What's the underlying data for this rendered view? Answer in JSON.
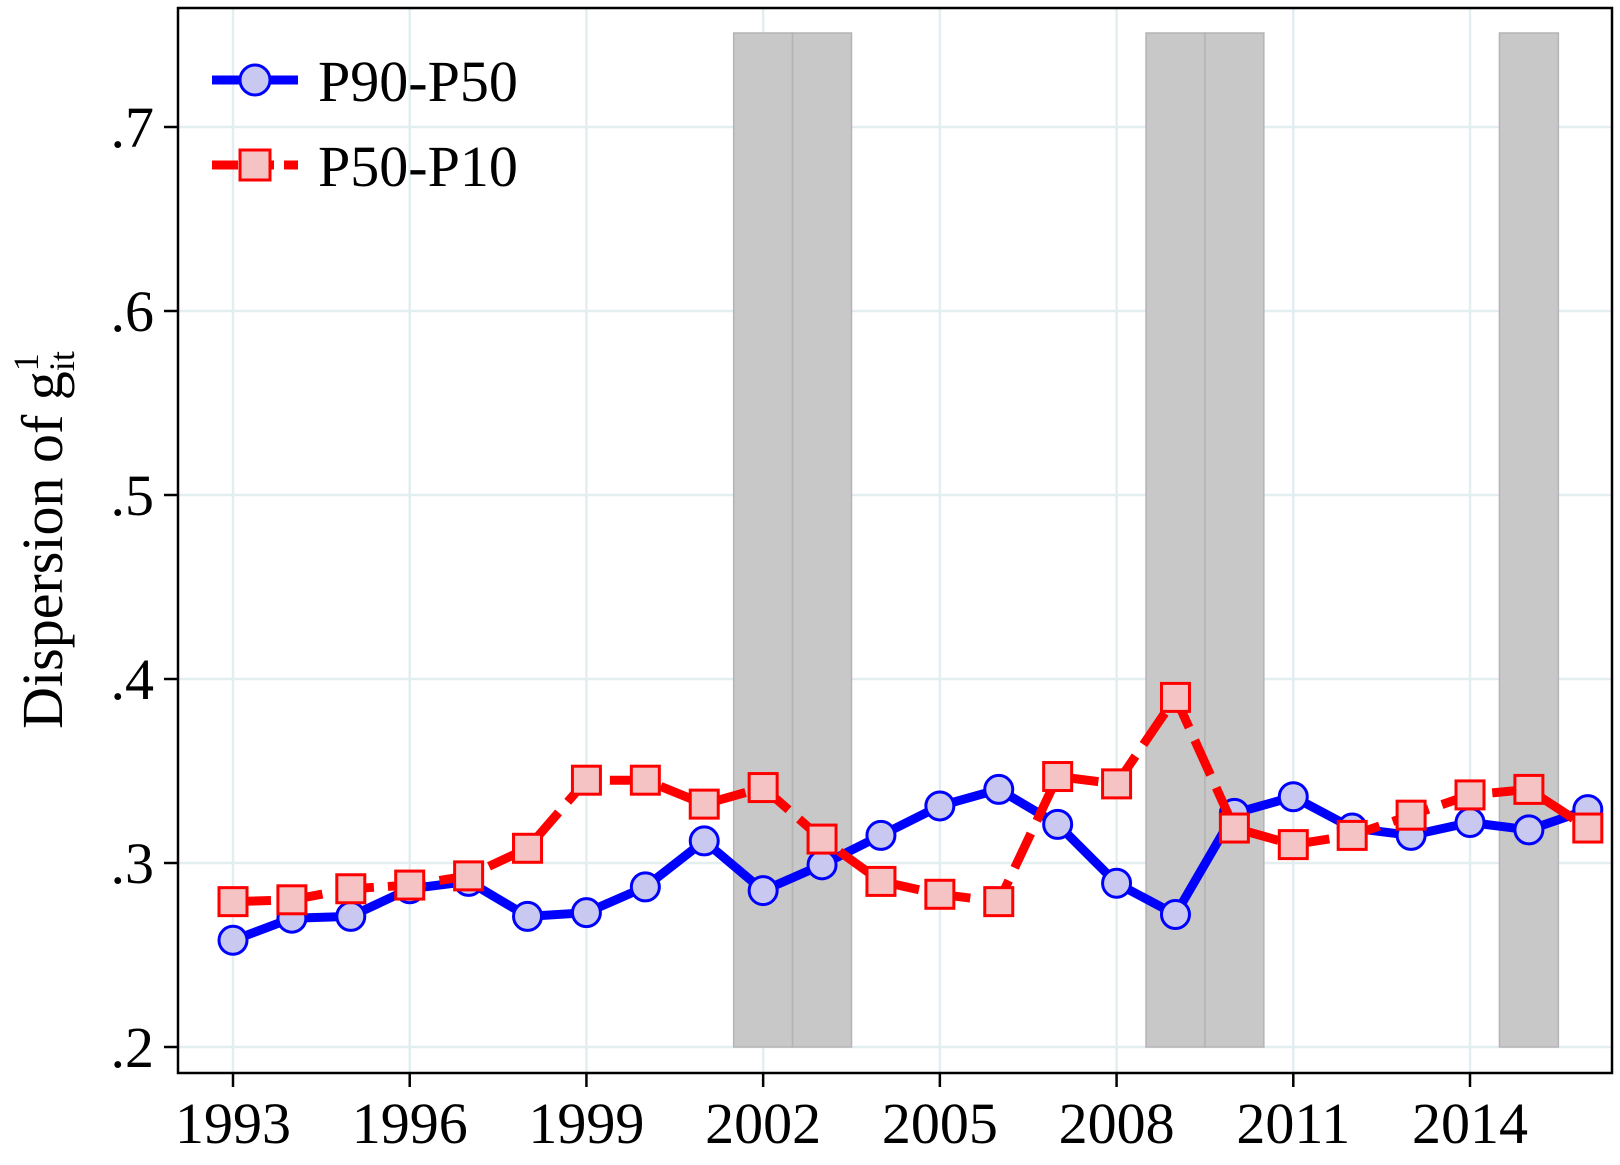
{
  "chart_data": {
    "type": "line",
    "title": "",
    "xlabel": "",
    "ylabel": {
      "main": "Dispersion of g",
      "superscript": "1",
      "subscript": "it"
    },
    "xlim": [
      1992.2,
      2016.2
    ],
    "ylim": [
      0.2,
      0.75
    ],
    "x_ticks": [
      1993,
      1996,
      1999,
      2002,
      2005,
      2008,
      2011,
      2014
    ],
    "x_tick_labels": [
      "1993",
      "1996",
      "1999",
      "2002",
      "2005",
      "2008",
      "2011",
      "2014"
    ],
    "y_ticks": [
      0.2,
      0.3,
      0.4,
      0.5,
      0.6,
      0.7
    ],
    "y_tick_labels": [
      ".2",
      ".3",
      ".4",
      ".5",
      ".6",
      ".7"
    ],
    "grid": true,
    "legend_position": "top-left",
    "shaded_periods": [
      {
        "start": 2001.5,
        "end": 2002.5
      },
      {
        "start": 2002.5,
        "end": 2003.5
      },
      {
        "start": 2008.5,
        "end": 2009.5
      },
      {
        "start": 2009.5,
        "end": 2010.5
      },
      {
        "start": 2014.5,
        "end": 2015.5
      }
    ],
    "x": [
      1993,
      1994,
      1995,
      1996,
      1997,
      1998,
      1999,
      2000,
      2001,
      2002,
      2003,
      2004,
      2005,
      2006,
      2007,
      2008,
      2009,
      2010,
      2011,
      2012,
      2013,
      2014,
      2015,
      2016
    ],
    "series": [
      {
        "name": "P90-P50",
        "color": "#0000ff",
        "marker": "circle",
        "marker_fill": "#c8c8f0",
        "line_style": "solid",
        "values": [
          0.258,
          0.27,
          0.271,
          0.286,
          0.29,
          0.271,
          0.273,
          0.287,
          0.312,
          0.285,
          0.299,
          0.315,
          0.331,
          0.34,
          0.321,
          0.289,
          0.272,
          0.327,
          0.336,
          0.319,
          0.315,
          0.322,
          0.318,
          0.329
        ]
      },
      {
        "name": "P50-P10",
        "color": "#ff0000",
        "marker": "square",
        "marker_fill": "#f5c3c3",
        "line_style": "dashed",
        "values": [
          0.279,
          0.28,
          0.286,
          0.288,
          0.293,
          0.308,
          0.345,
          0.345,
          0.332,
          0.341,
          0.313,
          0.29,
          0.283,
          0.279,
          0.347,
          0.343,
          0.39,
          0.319,
          0.31,
          0.315,
          0.326,
          0.337,
          0.34,
          0.319
        ]
      }
    ]
  }
}
